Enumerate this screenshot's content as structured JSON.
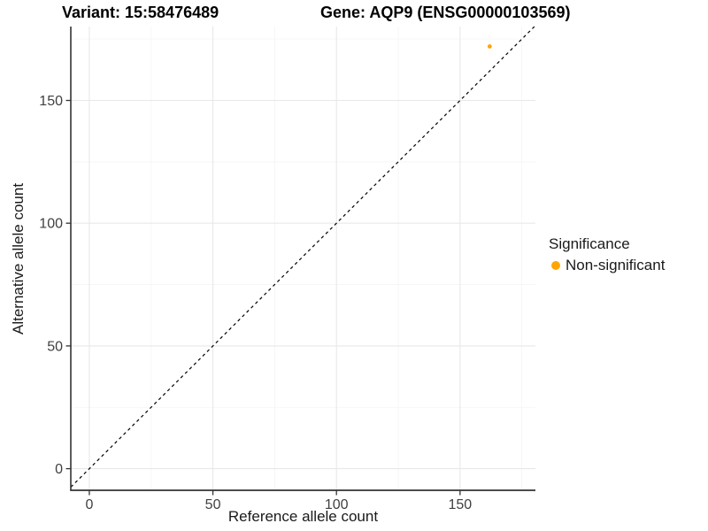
{
  "titles": {
    "variant": "Variant: 15:58476489",
    "gene": "Gene: AQP9 (ENSG00000103569)"
  },
  "chart_data": {
    "type": "scatter",
    "xlabel": "Reference allele count",
    "ylabel": "Alternative allele count",
    "xticks": [
      0,
      50,
      100,
      150
    ],
    "yticks": [
      0,
      50,
      100,
      150
    ],
    "x_minor": [
      25,
      75,
      125,
      175
    ],
    "y_minor": [
      25,
      75,
      125,
      175
    ],
    "xlim": [
      -7.5,
      180.5
    ],
    "ylim": [
      -8.8,
      180.1
    ],
    "grid": {
      "major_color": "#E8E8E8",
      "minor_color": "#F4F4F4"
    },
    "axis_color": "#333333",
    "tick_label_color": "#404040",
    "points": [
      {
        "x": 162,
        "y": 172,
        "series": "Non-significant",
        "color": "#FFA500"
      }
    ],
    "point_radius": 2.4,
    "identity_line": {
      "slope": 1,
      "intercept": 0,
      "style": "dashed",
      "color": "#000000"
    },
    "legend": {
      "title": "Significance",
      "position": "right",
      "entries": [
        {
          "label": "Non-significant",
          "color": "#FFA500"
        }
      ]
    }
  }
}
